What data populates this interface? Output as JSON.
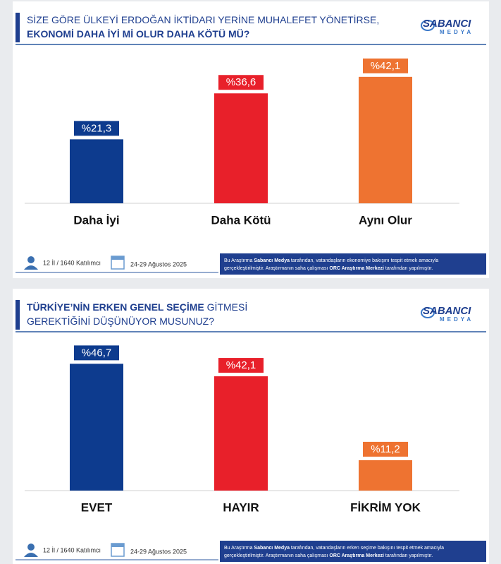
{
  "chart_data": [
    {
      "type": "bar",
      "title": [
        [
          {
            "text": "SİZE GÖRE ÜLKEYİ ERDOĞAN İKTİDARI YERİNE MUHALEFET YÖNETİRSE,",
            "bold": false
          }
        ],
        [
          {
            "text": "EKONOMİ DAHA İYİ Mİ OLUR DAHA KÖTÜ MÜ?",
            "bold": true
          }
        ]
      ],
      "logo": [
        "SABANCI",
        "MEDYA"
      ],
      "categories": [
        "Daha İyi",
        "Daha Kötü",
        "Aynı Olur"
      ],
      "values": [
        21.3,
        36.6,
        42.1
      ],
      "value_labels": [
        "%21,3",
        "%36,6",
        "%42,1"
      ],
      "colors": [
        "#0d3b8e",
        "#e8202a",
        "#ee7331"
      ],
      "ylim": [
        0,
        47
      ],
      "participants": "12 İl / 1640 Katılımcı",
      "dates": "24-29 Ağustos 2025",
      "note": [
        [
          {
            "text": "Bu Araştırma ",
            "bold": false
          },
          {
            "text": "Sabancı Medya",
            "bold": true
          },
          {
            "text": " tarafından, vatandaşların ekonomiye bakışını tespit etmek amacıyla",
            "bold": false
          }
        ],
        [
          {
            "text": "gerçekleştirilmiştir. Araştırmanın saha çalışması ",
            "bold": false
          },
          {
            "text": "ORC Araştırma Merkezi",
            "bold": true
          },
          {
            "text": " tarafından yapılmıştır.",
            "bold": false
          }
        ]
      ]
    },
    {
      "type": "bar",
      "title": [
        [
          {
            "text": "TÜRKİYE’NİN ERKEN GENEL SEÇİME",
            "bold": true
          },
          {
            "text": " GİTMESİ",
            "bold": false
          }
        ],
        [
          {
            "text": "GEREKTİĞİNİ DÜŞÜNÜYOR MUSUNUZ?",
            "bold": false
          }
        ]
      ],
      "logo": [
        "SABANCI",
        "MEDYA"
      ],
      "categories": [
        "EVET",
        "HAYIR",
        "FİKRİM YOK"
      ],
      "values": [
        46.7,
        42.1,
        11.2
      ],
      "value_labels": [
        "%46,7",
        "%42,1",
        "%11,2"
      ],
      "colors": [
        "#0d3b8e",
        "#e8202a",
        "#ee7331"
      ],
      "ylim": [
        0,
        52
      ],
      "participants": "12 İl / 1640 Katılımcı",
      "dates": "24-29 Ağustos 2025",
      "note": [
        [
          {
            "text": "Bu Araştırma ",
            "bold": false
          },
          {
            "text": "Sabancı Medya",
            "bold": true
          },
          {
            "text": " tarafından, vatandaşların erken seçime bakışını tespit etmek amacıyla",
            "bold": false
          }
        ],
        [
          {
            "text": "gerçekleştirilmiştir. Araştırmanın saha çalışması ",
            "bold": false
          },
          {
            "text": "ORC Araştırma Merkezi",
            "bold": true
          },
          {
            "text": " tarafından yapılmıştır.",
            "bold": false
          }
        ]
      ]
    }
  ]
}
